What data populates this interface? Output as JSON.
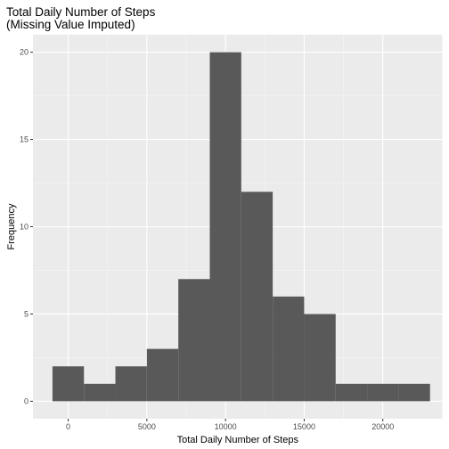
{
  "chart_data": {
    "type": "bar",
    "subtype": "histogram",
    "title": [
      "Total Daily Number of Steps",
      "(Missing Value Imputed)"
    ],
    "xlabel": "Total Daily Number of Steps",
    "ylabel": "Frequency",
    "xlim": [
      -2240,
      23780
    ],
    "ylim": [
      -1,
      21
    ],
    "xticks": [
      0,
      5000,
      10000,
      15000,
      20000
    ],
    "xtick_labels": [
      "0",
      "5000",
      "10000",
      "15000",
      "20000"
    ],
    "yticks": [
      0,
      5,
      10,
      15,
      20
    ],
    "ytick_labels": [
      "0",
      "5",
      "10",
      "15",
      "20"
    ],
    "bins": [
      {
        "x0": -1000,
        "x1": 1000,
        "count": 2
      },
      {
        "x0": 1000,
        "x1": 3000,
        "count": 1
      },
      {
        "x0": 3000,
        "x1": 5000,
        "count": 2
      },
      {
        "x0": 5000,
        "x1": 7000,
        "count": 3
      },
      {
        "x0": 7000,
        "x1": 9000,
        "count": 7
      },
      {
        "x0": 9000,
        "x1": 11000,
        "count": 20
      },
      {
        "x0": 11000,
        "x1": 13000,
        "count": 12
      },
      {
        "x0": 13000,
        "x1": 15000,
        "count": 6
      },
      {
        "x0": 15000,
        "x1": 17000,
        "count": 5
      },
      {
        "x0": 17000,
        "x1": 19000,
        "count": 1
      },
      {
        "x0": 19000,
        "x1": 21000,
        "count": 1
      },
      {
        "x0": 21000,
        "x1": 23000,
        "count": 1
      }
    ],
    "grid": true,
    "colors": {
      "panel_background": "#ebebeb",
      "grid_major": "#ffffff",
      "grid_minor": "#f5f5f5",
      "bar_fill": "#595959",
      "tick_mark": "#333333"
    }
  }
}
